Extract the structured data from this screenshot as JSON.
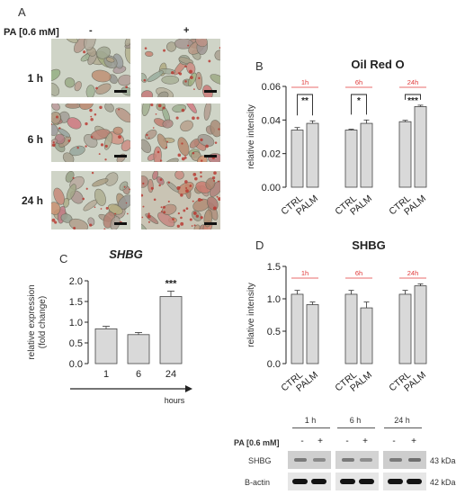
{
  "figure": {
    "panel_a": {
      "letter": "A",
      "treatment_label": "PA [0.6 mM]",
      "column_labels": [
        "-",
        "+"
      ],
      "row_labels": [
        "1 h",
        "6 h",
        "24 h"
      ]
    },
    "panel_b_letter": "B",
    "panel_c_letter": "C",
    "panel_d_letter": "D",
    "western": {
      "timepoints": [
        "1 h",
        "6 h",
        "24 h"
      ],
      "treatment_label": "PA [0.6 mM]",
      "signs": [
        "-",
        "+"
      ],
      "bands": [
        {
          "name": "SHBG",
          "kda": "43 kDa"
        },
        {
          "name": "B-actin",
          "kda": "42 kDa"
        }
      ]
    }
  },
  "chart_data": [
    {
      "id": "oil-red-o",
      "type": "bar",
      "title": "Oil Red O",
      "ylabel": "relative intensity",
      "ylim": [
        0,
        0.06
      ],
      "yticks": [
        "0.00",
        "0.02",
        "0.04",
        "0.06"
      ],
      "groups": [
        "1h",
        "6h",
        "24h"
      ],
      "categories": [
        "CTRL",
        "PALM"
      ],
      "values": [
        [
          0.034,
          0.038
        ],
        [
          0.034,
          0.038
        ],
        [
          0.039,
          0.048
        ]
      ],
      "errors": [
        [
          0.0015,
          0.0015
        ],
        [
          0.0005,
          0.002
        ],
        [
          0.0008,
          0.0008
        ]
      ],
      "significance": [
        "**",
        "*",
        "***"
      ],
      "bar_color": "#d9d9d9",
      "group_label_color": "#e03a3a"
    },
    {
      "id": "shbg-expression",
      "type": "bar",
      "title": "SHBG",
      "ylabel": "relative expression\n(fold change)",
      "xlabel": "hours",
      "ylim": [
        0,
        2.0
      ],
      "yticks": [
        "0.0",
        "0.5",
        "1.0",
        "1.5",
        "2.0"
      ],
      "categories": [
        "1",
        "6",
        "24"
      ],
      "values": [
        0.84,
        0.7,
        1.62
      ],
      "errors": [
        0.06,
        0.05,
        0.13
      ],
      "significance": [
        "",
        "",
        "***"
      ],
      "bar_color": "#d9d9d9"
    },
    {
      "id": "shbg-protein",
      "type": "bar",
      "title": "SHBG",
      "ylabel": "relative intensity",
      "ylim": [
        0,
        1.5
      ],
      "yticks": [
        "0.0",
        "0.5",
        "1.0",
        "1.5"
      ],
      "groups": [
        "1h",
        "6h",
        "24h"
      ],
      "categories": [
        "CTRL",
        "PALM"
      ],
      "values": [
        [
          1.07,
          0.91
        ],
        [
          1.07,
          0.86
        ],
        [
          1.07,
          1.2
        ]
      ],
      "errors": [
        [
          0.06,
          0.04
        ],
        [
          0.06,
          0.09
        ],
        [
          0.06,
          0.03
        ]
      ],
      "bar_color": "#d9d9d9",
      "group_label_color": "#e03a3a"
    }
  ]
}
